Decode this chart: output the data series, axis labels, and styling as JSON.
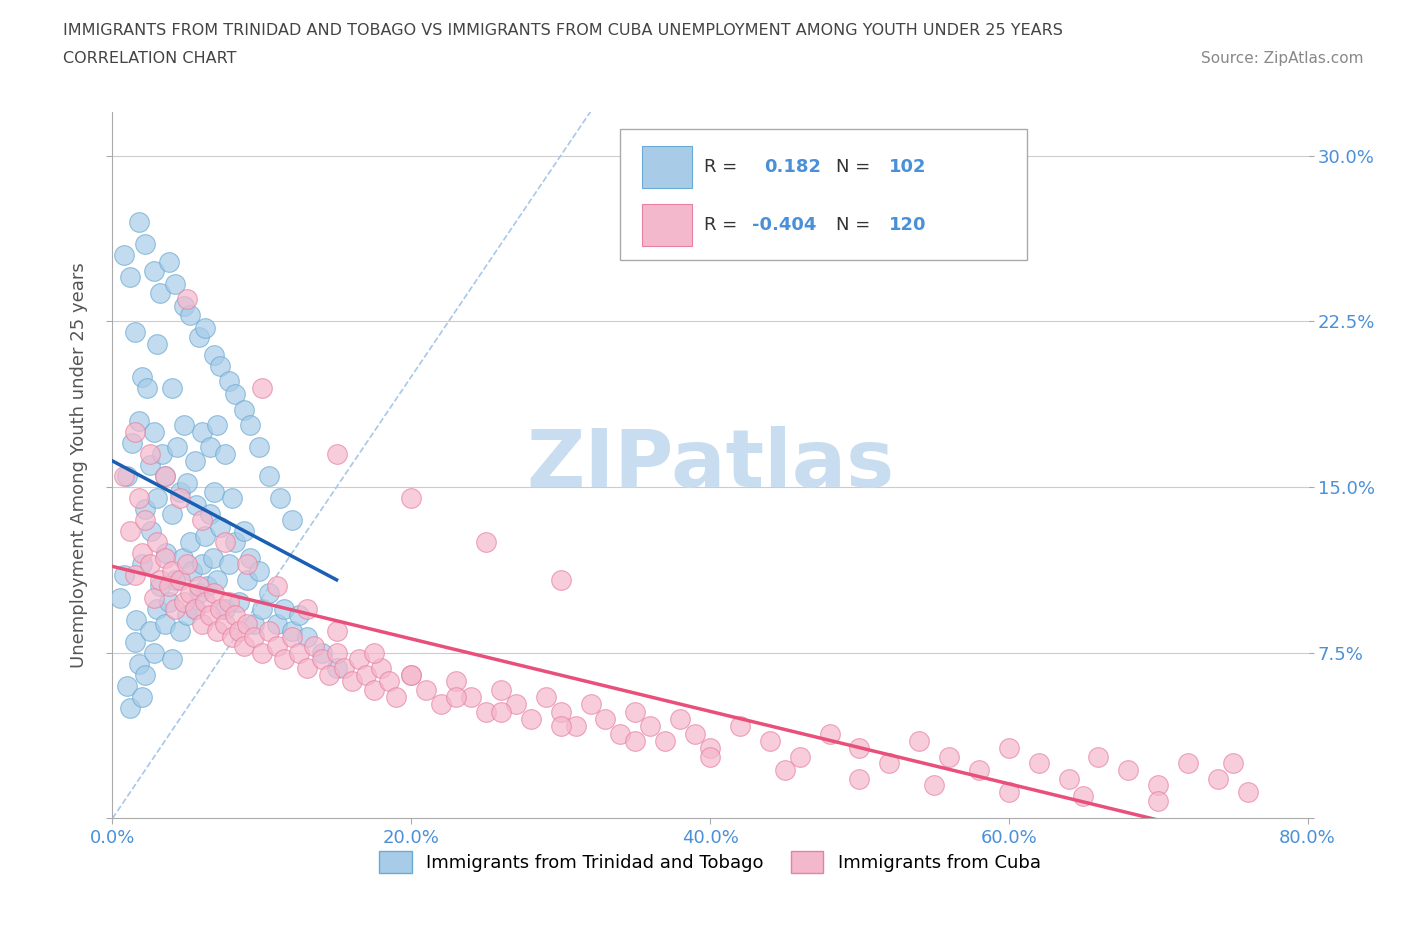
{
  "title_line1": "IMMIGRANTS FROM TRINIDAD AND TOBAGO VS IMMIGRANTS FROM CUBA UNEMPLOYMENT AMONG YOUTH UNDER 25 YEARS",
  "title_line2": "CORRELATION CHART",
  "source_text": "Source: ZipAtlas.com",
  "ylabel": "Unemployment Among Youth under 25 years",
  "xlim": [
    0.0,
    0.8
  ],
  "ylim": [
    0.0,
    0.32
  ],
  "xticks": [
    0.0,
    0.2,
    0.4,
    0.6,
    0.8
  ],
  "xticklabels": [
    "0.0%",
    "20.0%",
    "40.0%",
    "60.0%",
    "80.0%"
  ],
  "yticks": [
    0.0,
    0.075,
    0.15,
    0.225,
    0.3
  ],
  "yticklabels_right": [
    "",
    "7.5%",
    "15.0%",
    "22.5%",
    "30.0%"
  ],
  "series1_color": "#a8cce8",
  "series1_edge": "#6aaad4",
  "series2_color": "#f4b8cc",
  "series2_edge": "#e880a0",
  "line1_color": "#1a5fb4",
  "line2_color": "#e8507a",
  "diagonal_color": "#a8c8e8",
  "axis_color": "#4a90d9",
  "tt_scatter_x": [
    0.005,
    0.008,
    0.01,
    0.01,
    0.012,
    0.013,
    0.015,
    0.015,
    0.016,
    0.018,
    0.018,
    0.02,
    0.02,
    0.02,
    0.022,
    0.022,
    0.023,
    0.025,
    0.025,
    0.026,
    0.028,
    0.028,
    0.03,
    0.03,
    0.03,
    0.032,
    0.033,
    0.035,
    0.035,
    0.036,
    0.038,
    0.04,
    0.04,
    0.04,
    0.042,
    0.043,
    0.045,
    0.045,
    0.047,
    0.048,
    0.05,
    0.05,
    0.052,
    0.053,
    0.055,
    0.055,
    0.056,
    0.058,
    0.06,
    0.06,
    0.062,
    0.063,
    0.065,
    0.065,
    0.067,
    0.068,
    0.07,
    0.07,
    0.072,
    0.075,
    0.075,
    0.078,
    0.08,
    0.082,
    0.085,
    0.088,
    0.09,
    0.092,
    0.095,
    0.098,
    0.1,
    0.105,
    0.11,
    0.115,
    0.12,
    0.125,
    0.13,
    0.14,
    0.15,
    0.008,
    0.012,
    0.018,
    0.022,
    0.028,
    0.032,
    0.038,
    0.042,
    0.048,
    0.052,
    0.058,
    0.062,
    0.068,
    0.072,
    0.078,
    0.082,
    0.088,
    0.092,
    0.098,
    0.105,
    0.112,
    0.12
  ],
  "tt_scatter_y": [
    0.1,
    0.11,
    0.06,
    0.155,
    0.05,
    0.17,
    0.08,
    0.22,
    0.09,
    0.07,
    0.18,
    0.055,
    0.115,
    0.2,
    0.065,
    0.14,
    0.195,
    0.085,
    0.16,
    0.13,
    0.075,
    0.175,
    0.095,
    0.145,
    0.215,
    0.105,
    0.165,
    0.088,
    0.155,
    0.12,
    0.098,
    0.072,
    0.138,
    0.195,
    0.108,
    0.168,
    0.085,
    0.148,
    0.118,
    0.178,
    0.092,
    0.152,
    0.125,
    0.112,
    0.095,
    0.162,
    0.142,
    0.102,
    0.115,
    0.175,
    0.128,
    0.105,
    0.138,
    0.168,
    0.118,
    0.148,
    0.108,
    0.178,
    0.132,
    0.095,
    0.165,
    0.115,
    0.145,
    0.125,
    0.098,
    0.13,
    0.108,
    0.118,
    0.088,
    0.112,
    0.095,
    0.102,
    0.088,
    0.095,
    0.085,
    0.092,
    0.082,
    0.075,
    0.068,
    0.255,
    0.245,
    0.27,
    0.26,
    0.248,
    0.238,
    0.252,
    0.242,
    0.232,
    0.228,
    0.218,
    0.222,
    0.21,
    0.205,
    0.198,
    0.192,
    0.185,
    0.178,
    0.168,
    0.155,
    0.145,
    0.135
  ],
  "cuba_scatter_x": [
    0.008,
    0.012,
    0.015,
    0.018,
    0.02,
    0.022,
    0.025,
    0.028,
    0.03,
    0.032,
    0.035,
    0.038,
    0.04,
    0.042,
    0.045,
    0.048,
    0.05,
    0.052,
    0.055,
    0.058,
    0.06,
    0.062,
    0.065,
    0.068,
    0.07,
    0.072,
    0.075,
    0.078,
    0.08,
    0.082,
    0.085,
    0.088,
    0.09,
    0.095,
    0.1,
    0.105,
    0.11,
    0.115,
    0.12,
    0.125,
    0.13,
    0.135,
    0.14,
    0.145,
    0.15,
    0.155,
    0.16,
    0.165,
    0.17,
    0.175,
    0.18,
    0.185,
    0.19,
    0.2,
    0.21,
    0.22,
    0.23,
    0.24,
    0.25,
    0.26,
    0.27,
    0.28,
    0.29,
    0.3,
    0.31,
    0.32,
    0.33,
    0.34,
    0.35,
    0.36,
    0.37,
    0.38,
    0.39,
    0.4,
    0.42,
    0.44,
    0.46,
    0.48,
    0.5,
    0.52,
    0.54,
    0.56,
    0.58,
    0.6,
    0.62,
    0.64,
    0.66,
    0.68,
    0.7,
    0.72,
    0.74,
    0.76,
    0.015,
    0.025,
    0.035,
    0.045,
    0.06,
    0.075,
    0.09,
    0.11,
    0.13,
    0.15,
    0.175,
    0.2,
    0.23,
    0.26,
    0.3,
    0.35,
    0.4,
    0.45,
    0.5,
    0.55,
    0.6,
    0.65,
    0.7,
    0.75,
    0.05,
    0.1,
    0.15,
    0.2,
    0.25,
    0.3
  ],
  "cuba_scatter_y": [
    0.155,
    0.13,
    0.11,
    0.145,
    0.12,
    0.135,
    0.115,
    0.1,
    0.125,
    0.108,
    0.118,
    0.105,
    0.112,
    0.095,
    0.108,
    0.098,
    0.115,
    0.102,
    0.095,
    0.105,
    0.088,
    0.098,
    0.092,
    0.102,
    0.085,
    0.095,
    0.088,
    0.098,
    0.082,
    0.092,
    0.085,
    0.078,
    0.088,
    0.082,
    0.075,
    0.085,
    0.078,
    0.072,
    0.082,
    0.075,
    0.068,
    0.078,
    0.072,
    0.065,
    0.075,
    0.068,
    0.062,
    0.072,
    0.065,
    0.058,
    0.068,
    0.062,
    0.055,
    0.065,
    0.058,
    0.052,
    0.062,
    0.055,
    0.048,
    0.058,
    0.052,
    0.045,
    0.055,
    0.048,
    0.042,
    0.052,
    0.045,
    0.038,
    0.048,
    0.042,
    0.035,
    0.045,
    0.038,
    0.032,
    0.042,
    0.035,
    0.028,
    0.038,
    0.032,
    0.025,
    0.035,
    0.028,
    0.022,
    0.032,
    0.025,
    0.018,
    0.028,
    0.022,
    0.015,
    0.025,
    0.018,
    0.012,
    0.175,
    0.165,
    0.155,
    0.145,
    0.135,
    0.125,
    0.115,
    0.105,
    0.095,
    0.085,
    0.075,
    0.065,
    0.055,
    0.048,
    0.042,
    0.035,
    0.028,
    0.022,
    0.018,
    0.015,
    0.012,
    0.01,
    0.008,
    0.025,
    0.235,
    0.195,
    0.165,
    0.145,
    0.125,
    0.108
  ]
}
